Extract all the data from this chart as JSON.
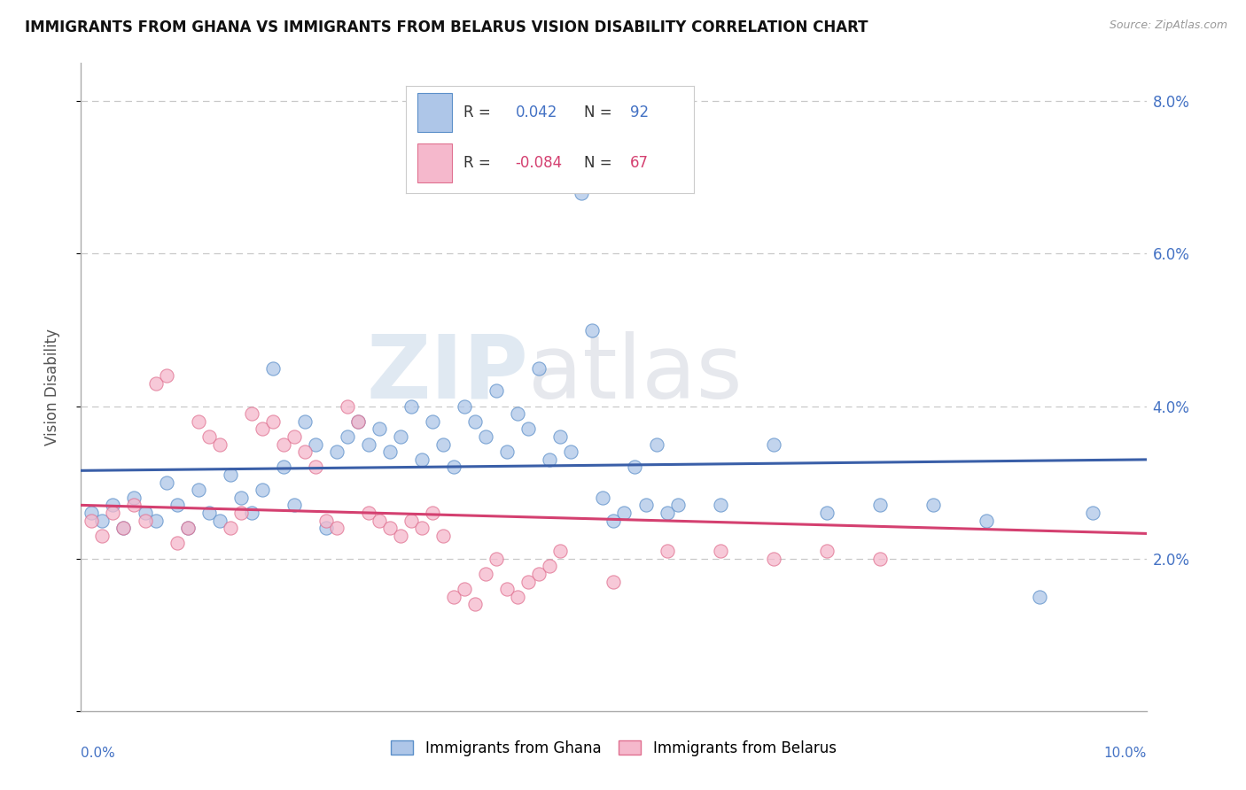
{
  "title": "IMMIGRANTS FROM GHANA VS IMMIGRANTS FROM BELARUS VISION DISABILITY CORRELATION CHART",
  "source": "Source: ZipAtlas.com",
  "ylabel": "Vision Disability",
  "xlim": [
    0.0,
    0.1
  ],
  "ylim": [
    0.0,
    0.085
  ],
  "yticks": [
    0.0,
    0.02,
    0.04,
    0.06,
    0.08
  ],
  "ytick_labels": [
    "",
    "2.0%",
    "4.0%",
    "6.0%",
    "8.0%"
  ],
  "ghana_color": "#aec6e8",
  "ghana_edge_color": "#5b8fc9",
  "ghana_line_color": "#3a5fa8",
  "belarus_color": "#f5b8cc",
  "belarus_edge_color": "#e07090",
  "belarus_line_color": "#d44070",
  "ghana_R": 0.042,
  "ghana_N": 92,
  "belarus_R": -0.084,
  "belarus_N": 67,
  "watermark_zip": "ZIP",
  "watermark_atlas": "atlas",
  "ghana_points_x": [
    0.001,
    0.002,
    0.003,
    0.004,
    0.005,
    0.006,
    0.007,
    0.008,
    0.009,
    0.01,
    0.011,
    0.012,
    0.013,
    0.014,
    0.015,
    0.016,
    0.017,
    0.018,
    0.019,
    0.02,
    0.021,
    0.022,
    0.023,
    0.024,
    0.025,
    0.026,
    0.027,
    0.028,
    0.029,
    0.03,
    0.031,
    0.032,
    0.033,
    0.034,
    0.035,
    0.036,
    0.037,
    0.038,
    0.039,
    0.04,
    0.041,
    0.042,
    0.043,
    0.044,
    0.045,
    0.046,
    0.047,
    0.048,
    0.049,
    0.05,
    0.051,
    0.052,
    0.053,
    0.054,
    0.055,
    0.056,
    0.06,
    0.065,
    0.07,
    0.075,
    0.08,
    0.085,
    0.09,
    0.095
  ],
  "ghana_points_y": [
    0.026,
    0.025,
    0.027,
    0.024,
    0.028,
    0.026,
    0.025,
    0.03,
    0.027,
    0.024,
    0.029,
    0.026,
    0.025,
    0.031,
    0.028,
    0.026,
    0.029,
    0.045,
    0.032,
    0.027,
    0.038,
    0.035,
    0.024,
    0.034,
    0.036,
    0.038,
    0.035,
    0.037,
    0.034,
    0.036,
    0.04,
    0.033,
    0.038,
    0.035,
    0.032,
    0.04,
    0.038,
    0.036,
    0.042,
    0.034,
    0.039,
    0.037,
    0.045,
    0.033,
    0.036,
    0.034,
    0.068,
    0.05,
    0.028,
    0.025,
    0.026,
    0.032,
    0.027,
    0.035,
    0.026,
    0.027,
    0.027,
    0.035,
    0.026,
    0.027,
    0.027,
    0.025,
    0.015,
    0.026
  ],
  "belarus_points_x": [
    0.001,
    0.002,
    0.003,
    0.004,
    0.005,
    0.006,
    0.007,
    0.008,
    0.009,
    0.01,
    0.011,
    0.012,
    0.013,
    0.014,
    0.015,
    0.016,
    0.017,
    0.018,
    0.019,
    0.02,
    0.021,
    0.022,
    0.023,
    0.024,
    0.025,
    0.026,
    0.027,
    0.028,
    0.029,
    0.03,
    0.031,
    0.032,
    0.033,
    0.034,
    0.035,
    0.036,
    0.037,
    0.038,
    0.039,
    0.04,
    0.041,
    0.042,
    0.043,
    0.044,
    0.045,
    0.05,
    0.055,
    0.06,
    0.065,
    0.07,
    0.075
  ],
  "belarus_points_y": [
    0.025,
    0.023,
    0.026,
    0.024,
    0.027,
    0.025,
    0.043,
    0.044,
    0.022,
    0.024,
    0.038,
    0.036,
    0.035,
    0.024,
    0.026,
    0.039,
    0.037,
    0.038,
    0.035,
    0.036,
    0.034,
    0.032,
    0.025,
    0.024,
    0.04,
    0.038,
    0.026,
    0.025,
    0.024,
    0.023,
    0.025,
    0.024,
    0.026,
    0.023,
    0.015,
    0.016,
    0.014,
    0.018,
    0.02,
    0.016,
    0.015,
    0.017,
    0.018,
    0.019,
    0.021,
    0.017,
    0.021,
    0.021,
    0.02,
    0.021,
    0.02
  ]
}
